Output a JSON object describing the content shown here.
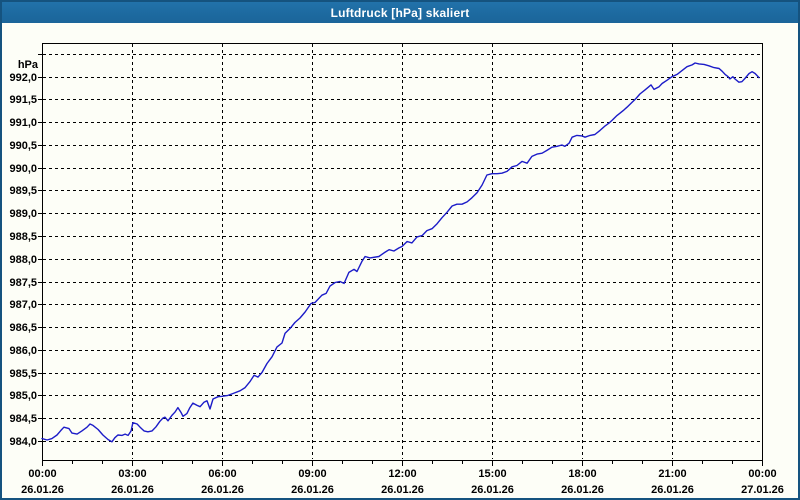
{
  "window": {
    "title": "Luftdruck [hPa] skaliert"
  },
  "chart_data": {
    "type": "line",
    "title": "Luftdruck [hPa] skaliert",
    "ylabel": "hPa",
    "unit_label": "hPa",
    "grid": "dashed",
    "legend": "none",
    "line_color": "#1c1cc8",
    "background_color": "#fdfef7",
    "titlebar_color": "#1d6aa0",
    "border_color": "#15537f",
    "x_unit": "time (hours from 26.01.26 00:00)",
    "xlim_hours": [
      0,
      24
    ],
    "ylim": [
      983.58,
      992.74
    ],
    "minor_x_step_hours": 1,
    "y_ticks": [
      {
        "value": 992.5,
        "label": ""
      },
      {
        "value": 992.0,
        "label": "992,0"
      },
      {
        "value": 991.5,
        "label": "991,5"
      },
      {
        "value": 991.0,
        "label": "991,0"
      },
      {
        "value": 990.5,
        "label": "990,5"
      },
      {
        "value": 990.0,
        "label": "990,0"
      },
      {
        "value": 989.5,
        "label": "989,5"
      },
      {
        "value": 989.0,
        "label": "989,0"
      },
      {
        "value": 988.5,
        "label": "988,5"
      },
      {
        "value": 988.0,
        "label": "988,0"
      },
      {
        "value": 987.5,
        "label": "987,5"
      },
      {
        "value": 987.0,
        "label": "987,0"
      },
      {
        "value": 986.5,
        "label": "986,5"
      },
      {
        "value": 986.0,
        "label": "986,0"
      },
      {
        "value": 985.5,
        "label": "985,5"
      },
      {
        "value": 985.0,
        "label": "985,0"
      },
      {
        "value": 984.5,
        "label": "984,5"
      },
      {
        "value": 984.0,
        "label": "984,0"
      }
    ],
    "x_ticks": [
      {
        "hour": 0,
        "time": "00:00",
        "date": "26.01.26"
      },
      {
        "hour": 3,
        "time": "03:00",
        "date": "26.01.26"
      },
      {
        "hour": 6,
        "time": "06:00",
        "date": "26.01.26"
      },
      {
        "hour": 9,
        "time": "09:00",
        "date": "26.01.26"
      },
      {
        "hour": 12,
        "time": "12:00",
        "date": "26.01.26"
      },
      {
        "hour": 15,
        "time": "15:00",
        "date": "26.01.26"
      },
      {
        "hour": 18,
        "time": "18:00",
        "date": "26.01.26"
      },
      {
        "hour": 21,
        "time": "21:00",
        "date": "26.01.26"
      },
      {
        "hour": 24,
        "time": "00:00",
        "date": "27.01.26"
      }
    ],
    "points": [
      [
        0.0,
        984.05
      ],
      [
        0.17,
        984.02
      ],
      [
        0.33,
        984.05
      ],
      [
        0.5,
        984.13
      ],
      [
        0.63,
        984.23
      ],
      [
        0.73,
        984.3
      ],
      [
        0.9,
        984.27
      ],
      [
        1.0,
        984.17
      ],
      [
        1.17,
        984.15
      ],
      [
        1.33,
        984.22
      ],
      [
        1.5,
        984.3
      ],
      [
        1.6,
        984.37
      ],
      [
        1.7,
        984.34
      ],
      [
        1.87,
        984.25
      ],
      [
        2.03,
        984.13
      ],
      [
        2.2,
        984.03
      ],
      [
        2.33,
        983.98
      ],
      [
        2.43,
        984.07
      ],
      [
        2.53,
        984.13
      ],
      [
        2.67,
        984.12
      ],
      [
        2.77,
        984.15
      ],
      [
        2.87,
        984.12
      ],
      [
        2.97,
        984.22
      ],
      [
        3.03,
        984.4
      ],
      [
        3.17,
        984.37
      ],
      [
        3.27,
        984.3
      ],
      [
        3.4,
        984.22
      ],
      [
        3.53,
        984.2
      ],
      [
        3.67,
        984.22
      ],
      [
        3.8,
        984.31
      ],
      [
        3.93,
        984.43
      ],
      [
        4.03,
        984.5
      ],
      [
        4.1,
        984.52
      ],
      [
        4.2,
        984.44
      ],
      [
        4.33,
        984.56
      ],
      [
        4.43,
        984.63
      ],
      [
        4.53,
        984.73
      ],
      [
        4.63,
        984.63
      ],
      [
        4.7,
        984.54
      ],
      [
        4.83,
        984.6
      ],
      [
        4.93,
        984.73
      ],
      [
        5.03,
        984.83
      ],
      [
        5.17,
        984.78
      ],
      [
        5.27,
        984.75
      ],
      [
        5.4,
        984.85
      ],
      [
        5.5,
        984.88
      ],
      [
        5.6,
        984.7
      ],
      [
        5.7,
        984.92
      ],
      [
        5.87,
        984.97
      ],
      [
        6.0,
        984.98
      ],
      [
        6.2,
        985.0
      ],
      [
        6.4,
        985.05
      ],
      [
        6.6,
        985.1
      ],
      [
        6.77,
        985.17
      ],
      [
        6.93,
        985.3
      ],
      [
        7.07,
        985.44
      ],
      [
        7.2,
        985.4
      ],
      [
        7.33,
        985.5
      ],
      [
        7.5,
        985.7
      ],
      [
        7.67,
        985.85
      ],
      [
        7.83,
        986.06
      ],
      [
        8.0,
        986.15
      ],
      [
        8.1,
        986.36
      ],
      [
        8.27,
        986.47
      ],
      [
        8.43,
        986.6
      ],
      [
        8.6,
        986.7
      ],
      [
        8.77,
        986.83
      ],
      [
        8.97,
        987.02
      ],
      [
        9.1,
        987.04
      ],
      [
        9.33,
        987.2
      ],
      [
        9.47,
        987.24
      ],
      [
        9.6,
        987.4
      ],
      [
        9.77,
        987.48
      ],
      [
        9.93,
        987.5
      ],
      [
        10.07,
        987.46
      ],
      [
        10.23,
        987.7
      ],
      [
        10.4,
        987.77
      ],
      [
        10.5,
        987.72
      ],
      [
        10.67,
        987.95
      ],
      [
        10.77,
        988.05
      ],
      [
        10.93,
        988.02
      ],
      [
        11.23,
        988.05
      ],
      [
        11.4,
        988.13
      ],
      [
        11.57,
        988.2
      ],
      [
        11.73,
        988.17
      ],
      [
        11.9,
        988.24
      ],
      [
        12.0,
        988.27
      ],
      [
        12.17,
        988.38
      ],
      [
        12.33,
        988.35
      ],
      [
        12.5,
        988.48
      ],
      [
        12.67,
        988.51
      ],
      [
        12.83,
        988.62
      ],
      [
        13.0,
        988.66
      ],
      [
        13.17,
        988.77
      ],
      [
        13.33,
        988.9
      ],
      [
        13.5,
        989.02
      ],
      [
        13.67,
        989.16
      ],
      [
        13.83,
        989.2
      ],
      [
        14.0,
        989.2
      ],
      [
        14.17,
        989.25
      ],
      [
        14.33,
        989.34
      ],
      [
        14.5,
        989.45
      ],
      [
        14.67,
        989.62
      ],
      [
        14.83,
        989.84
      ],
      [
        15.0,
        989.87
      ],
      [
        15.17,
        989.87
      ],
      [
        15.33,
        989.88
      ],
      [
        15.5,
        989.92
      ],
      [
        15.67,
        990.02
      ],
      [
        15.83,
        990.05
      ],
      [
        16.0,
        990.14
      ],
      [
        16.17,
        990.1
      ],
      [
        16.33,
        990.25
      ],
      [
        16.5,
        990.3
      ],
      [
        16.67,
        990.32
      ],
      [
        16.83,
        990.38
      ],
      [
        17.0,
        990.45
      ],
      [
        17.17,
        990.47
      ],
      [
        17.33,
        990.5
      ],
      [
        17.43,
        990.47
      ],
      [
        17.57,
        990.54
      ],
      [
        17.67,
        990.67
      ],
      [
        17.83,
        990.71
      ],
      [
        18.0,
        990.7
      ],
      [
        18.1,
        990.67
      ],
      [
        18.27,
        990.71
      ],
      [
        18.43,
        990.73
      ],
      [
        18.6,
        990.82
      ],
      [
        18.77,
        990.92
      ],
      [
        18.9,
        990.98
      ],
      [
        19.0,
        991.04
      ],
      [
        19.17,
        991.15
      ],
      [
        19.27,
        991.2
      ],
      [
        19.4,
        991.27
      ],
      [
        19.5,
        991.33
      ],
      [
        19.67,
        991.44
      ],
      [
        19.8,
        991.52
      ],
      [
        19.93,
        991.62
      ],
      [
        20.1,
        991.71
      ],
      [
        20.23,
        991.78
      ],
      [
        20.3,
        991.82
      ],
      [
        20.4,
        991.72
      ],
      [
        20.57,
        991.78
      ],
      [
        20.67,
        991.85
      ],
      [
        20.83,
        991.92
      ],
      [
        21.0,
        992.0
      ],
      [
        21.17,
        992.05
      ],
      [
        21.27,
        992.1
      ],
      [
        21.5,
        992.22
      ],
      [
        21.67,
        992.26
      ],
      [
        21.77,
        992.3
      ],
      [
        21.9,
        992.28
      ],
      [
        22.07,
        992.27
      ],
      [
        22.23,
        992.24
      ],
      [
        22.4,
        992.2
      ],
      [
        22.57,
        992.18
      ],
      [
        22.67,
        992.12
      ],
      [
        22.77,
        992.05
      ],
      [
        22.87,
        992.0
      ],
      [
        22.93,
        991.95
      ],
      [
        23.03,
        992.0
      ],
      [
        23.1,
        991.95
      ],
      [
        23.23,
        991.88
      ],
      [
        23.33,
        991.89
      ],
      [
        23.43,
        991.96
      ],
      [
        23.57,
        992.07
      ],
      [
        23.67,
        992.11
      ],
      [
        23.77,
        992.07
      ],
      [
        23.9,
        991.98
      ]
    ]
  }
}
